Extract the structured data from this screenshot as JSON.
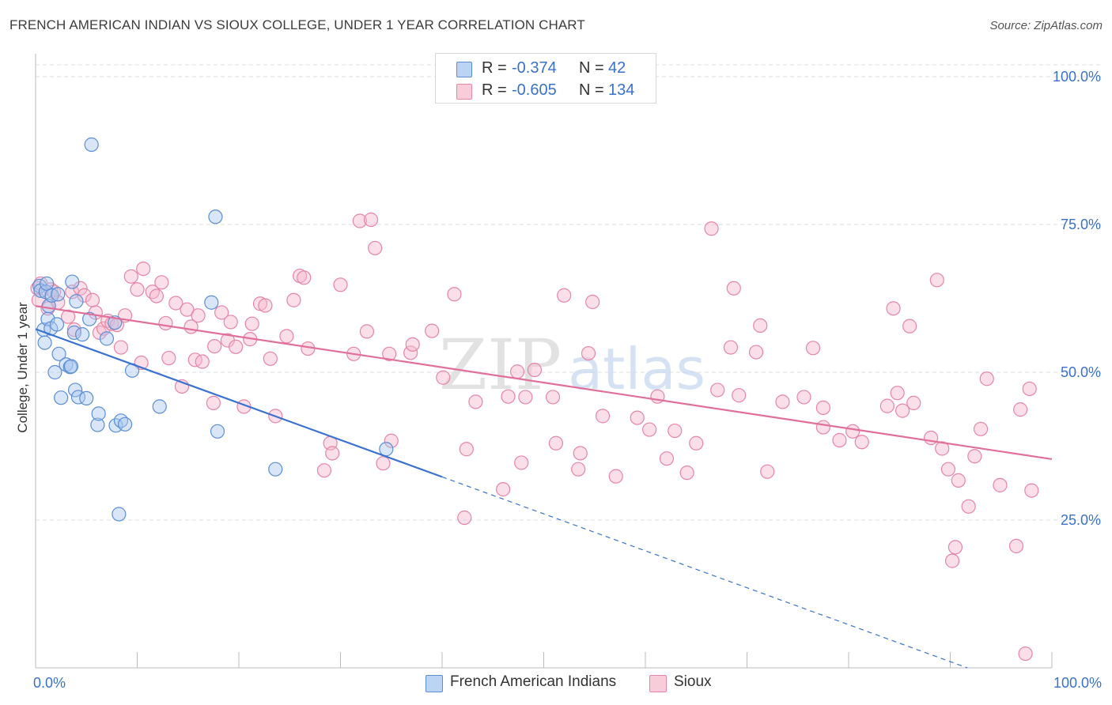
{
  "title": "FRENCH AMERICAN INDIAN VS SIOUX COLLEGE, UNDER 1 YEAR CORRELATION CHART",
  "source": "Source: ZipAtlas.com",
  "watermark": {
    "zip": "ZIP",
    "atlas": "atlas"
  },
  "legend": {
    "rows": [
      {
        "r_label": "R =",
        "r_value": "-0.374",
        "n_label": "N =",
        "n_value": "42"
      },
      {
        "r_label": "R =",
        "r_value": "-0.605",
        "n_label": "N =",
        "n_value": "134"
      }
    ]
  },
  "bottom_legend": [
    "French American Indians",
    "Sioux"
  ],
  "colors": {
    "blue_fill": "#a9c8ef",
    "blue_stroke": "#5b8fd6",
    "blue_line": "#3a72d0",
    "pink_fill": "#f6b8cb",
    "pink_stroke": "#e685a6",
    "pink_line": "#e0709a",
    "axis_text": "#3a72c9",
    "grid": "#dddddd"
  },
  "chart_data": {
    "type": "scatter",
    "title": "FRENCH AMERICAN INDIAN VS SIOUX COLLEGE, UNDER 1 YEAR CORRELATION CHART",
    "xlabel": "",
    "ylabel": "College, Under 1 year",
    "xlim": [
      0,
      100
    ],
    "ylim": [
      0,
      102
    ],
    "x_tick_labels": [
      "0.0%",
      "100.0%"
    ],
    "y_ticks": [
      25,
      50,
      75,
      100
    ],
    "y_tick_labels": [
      "25.0%",
      "50.0%",
      "75.0%",
      "100.0%"
    ],
    "series": [
      {
        "name": "French American Indians",
        "r": -0.374,
        "n": 42,
        "trend": {
          "x0": 0,
          "y0": 57.3,
          "x1": 40,
          "y1": 32.3,
          "dash_to_x": 100,
          "dash_to_y": -5.2
        },
        "points": [
          [
            0.4,
            64.6
          ],
          [
            0.5,
            63.8
          ],
          [
            0.8,
            57.2
          ],
          [
            0.9,
            55.0
          ],
          [
            1.0,
            63.6
          ],
          [
            1.1,
            65.0
          ],
          [
            1.2,
            59.0
          ],
          [
            1.3,
            61.2
          ],
          [
            1.5,
            57.4
          ],
          [
            1.6,
            63.0
          ],
          [
            1.9,
            50.0
          ],
          [
            2.1,
            58.1
          ],
          [
            2.2,
            63.2
          ],
          [
            2.3,
            53.1
          ],
          [
            2.5,
            45.7
          ],
          [
            3.0,
            51.3
          ],
          [
            3.4,
            50.9
          ],
          [
            3.5,
            51.0
          ],
          [
            3.6,
            65.3
          ],
          [
            3.8,
            56.7
          ],
          [
            3.9,
            47.0
          ],
          [
            4.0,
            62.0
          ],
          [
            4.2,
            45.8
          ],
          [
            4.6,
            56.4
          ],
          [
            5.0,
            45.6
          ],
          [
            5.3,
            59.0
          ],
          [
            5.5,
            88.5
          ],
          [
            6.1,
            41.1
          ],
          [
            6.2,
            43.0
          ],
          [
            7.0,
            55.7
          ],
          [
            7.8,
            58.4
          ],
          [
            7.9,
            41.0
          ],
          [
            8.2,
            26.0
          ],
          [
            8.4,
            41.8
          ],
          [
            8.8,
            41.2
          ],
          [
            9.5,
            50.3
          ],
          [
            12.2,
            44.2
          ],
          [
            17.3,
            61.8
          ],
          [
            17.7,
            76.3
          ],
          [
            17.9,
            40.0
          ],
          [
            23.6,
            33.6
          ],
          [
            34.5,
            37.0
          ]
        ]
      },
      {
        "name": "Sioux",
        "r": -0.605,
        "n": 134,
        "trend": {
          "x0": 0,
          "y0": 61.2,
          "x1": 100,
          "y1": 35.3
        },
        "points": [
          [
            0.2,
            64.2
          ],
          [
            0.3,
            62.2
          ],
          [
            0.5,
            65.0
          ],
          [
            1.2,
            60.8
          ],
          [
            1.5,
            64.0
          ],
          [
            1.8,
            63.6
          ],
          [
            2.2,
            61.8
          ],
          [
            3.2,
            59.4
          ],
          [
            3.8,
            57.2
          ],
          [
            3.6,
            63.6
          ],
          [
            4.4,
            64.2
          ],
          [
            4.8,
            63.0
          ],
          [
            5.6,
            62.2
          ],
          [
            5.9,
            60.1
          ],
          [
            6.3,
            56.7
          ],
          [
            6.7,
            57.4
          ],
          [
            7.1,
            58.7
          ],
          [
            7.5,
            58.2
          ],
          [
            8.0,
            58.0
          ],
          [
            8.4,
            54.2
          ],
          [
            8.8,
            59.6
          ],
          [
            9.4,
            66.2
          ],
          [
            10.0,
            64.0
          ],
          [
            10.4,
            51.6
          ],
          [
            10.6,
            67.5
          ],
          [
            11.5,
            63.6
          ],
          [
            11.9,
            62.9
          ],
          [
            12.4,
            65.2
          ],
          [
            12.8,
            58.3
          ],
          [
            13.1,
            52.4
          ],
          [
            13.8,
            61.7
          ],
          [
            14.4,
            47.6
          ],
          [
            14.9,
            60.6
          ],
          [
            15.3,
            57.7
          ],
          [
            15.7,
            52.1
          ],
          [
            16.0,
            59.6
          ],
          [
            16.4,
            51.8
          ],
          [
            17.5,
            44.8
          ],
          [
            17.6,
            54.4
          ],
          [
            18.3,
            60.1
          ],
          [
            18.9,
            55.4
          ],
          [
            19.2,
            58.5
          ],
          [
            19.7,
            54.3
          ],
          [
            20.5,
            44.2
          ],
          [
            21.1,
            55.6
          ],
          [
            21.3,
            58.2
          ],
          [
            22.1,
            61.6
          ],
          [
            22.6,
            61.3
          ],
          [
            23.1,
            52.3
          ],
          [
            23.6,
            42.6
          ],
          [
            24.7,
            56.1
          ],
          [
            25.4,
            62.2
          ],
          [
            26.0,
            66.3
          ],
          [
            26.4,
            66.0
          ],
          [
            26.8,
            54.0
          ],
          [
            28.4,
            33.4
          ],
          [
            29.0,
            38.0
          ],
          [
            29.2,
            36.3
          ],
          [
            30.0,
            64.8
          ],
          [
            31.3,
            53.1
          ],
          [
            31.9,
            75.6
          ],
          [
            32.6,
            56.9
          ],
          [
            33.0,
            75.8
          ],
          [
            33.4,
            71.0
          ],
          [
            34.2,
            34.6
          ],
          [
            34.8,
            53.1
          ],
          [
            35.0,
            38.4
          ],
          [
            36.9,
            53.3
          ],
          [
            37.1,
            54.7
          ],
          [
            39.0,
            57.0
          ],
          [
            40.1,
            49.1
          ],
          [
            41.2,
            63.2
          ],
          [
            42.2,
            25.4
          ],
          [
            42.4,
            37.0
          ],
          [
            43.3,
            45.0
          ],
          [
            46.0,
            30.2
          ],
          [
            46.5,
            45.9
          ],
          [
            47.4,
            50.1
          ],
          [
            47.8,
            34.7
          ],
          [
            48.2,
            45.8
          ],
          [
            49.1,
            50.4
          ],
          [
            50.9,
            45.8
          ],
          [
            51.2,
            38.0
          ],
          [
            52.0,
            63.0
          ],
          [
            53.4,
            33.6
          ],
          [
            53.6,
            36.3
          ],
          [
            54.4,
            53.2
          ],
          [
            54.8,
            61.9
          ],
          [
            55.8,
            42.6
          ],
          [
            57.1,
            32.4
          ],
          [
            59.2,
            42.3
          ],
          [
            60.4,
            40.3
          ],
          [
            61.2,
            45.9
          ],
          [
            62.1,
            35.4
          ],
          [
            62.9,
            40.1
          ],
          [
            64.1,
            33.0
          ],
          [
            65.0,
            38.0
          ],
          [
            66.5,
            74.3
          ],
          [
            67.1,
            47.0
          ],
          [
            68.4,
            54.2
          ],
          [
            68.7,
            64.2
          ],
          [
            69.2,
            46.1
          ],
          [
            70.9,
            53.4
          ],
          [
            71.3,
            57.9
          ],
          [
            72.0,
            33.2
          ],
          [
            73.5,
            45.0
          ],
          [
            75.6,
            45.8
          ],
          [
            76.5,
            54.1
          ],
          [
            77.5,
            44.0
          ],
          [
            77.5,
            40.7
          ],
          [
            79.1,
            38.5
          ],
          [
            80.4,
            40.0
          ],
          [
            81.3,
            38.2
          ],
          [
            83.8,
            44.3
          ],
          [
            84.4,
            60.8
          ],
          [
            84.8,
            46.5
          ],
          [
            85.3,
            43.5
          ],
          [
            86.0,
            57.8
          ],
          [
            86.4,
            44.8
          ],
          [
            88.1,
            38.9
          ],
          [
            88.7,
            65.6
          ],
          [
            89.2,
            37.1
          ],
          [
            89.8,
            33.6
          ],
          [
            90.2,
            18.1
          ],
          [
            90.5,
            20.4
          ],
          [
            90.8,
            31.7
          ],
          [
            91.8,
            27.3
          ],
          [
            92.4,
            35.8
          ],
          [
            93.0,
            40.4
          ],
          [
            93.6,
            48.9
          ],
          [
            94.9,
            30.9
          ],
          [
            96.5,
            20.6
          ],
          [
            96.9,
            43.7
          ],
          [
            97.4,
            2.4
          ],
          [
            97.8,
            47.2
          ],
          [
            98.0,
            30.0
          ]
        ]
      }
    ]
  }
}
